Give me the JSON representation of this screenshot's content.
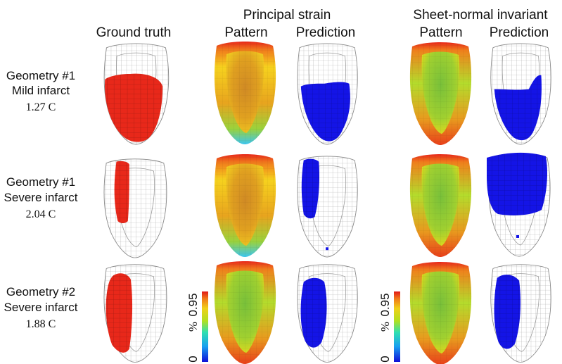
{
  "headers": {
    "ground_truth": "Ground truth",
    "principal_strain": "Principal strain",
    "sheet_normal": "Sheet-normal invariant",
    "pattern": "Pattern",
    "prediction": "Prediction"
  },
  "rows": [
    {
      "geometry": "Geometry #1",
      "infarct": "Mild infarct",
      "value": "1.27 C"
    },
    {
      "geometry": "Geometry #1",
      "infarct": "Severe infarct",
      "value": "2.04 C"
    },
    {
      "geometry": "Geometry #2",
      "infarct": "Severe infarct",
      "value": "1.88 C"
    }
  ],
  "colorbar": {
    "max": "0.95",
    "min": "0",
    "unit": "%"
  },
  "colors": {
    "infarct": "#e8281a",
    "prediction": "#1414e6",
    "mesh": "#9a9a9a"
  }
}
